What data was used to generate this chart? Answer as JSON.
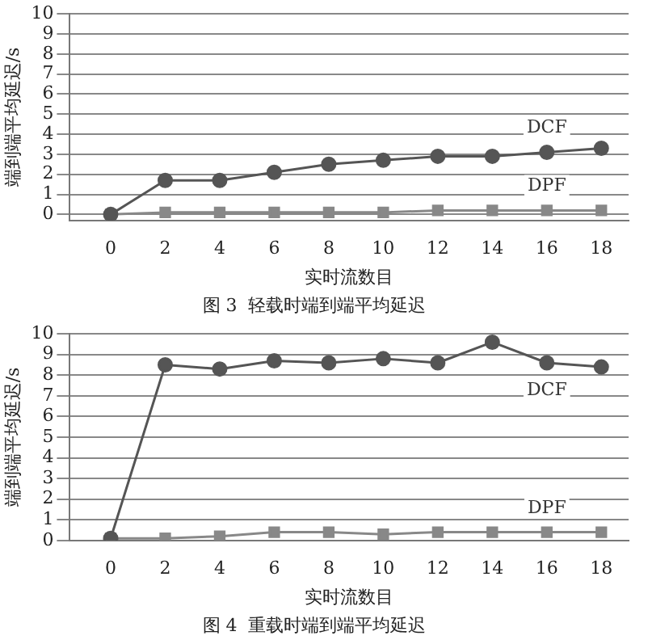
{
  "chart_data": [
    {
      "type": "line",
      "title": "图 3  轻载时端到端平均延迟",
      "xlabel": "实时流数目",
      "ylabel": "端到端平均延迟/s",
      "x": [
        0,
        2,
        4,
        6,
        8,
        10,
        12,
        14,
        16,
        18
      ],
      "xlim": [
        -1.5,
        19
      ],
      "xticks": [
        0,
        2,
        4,
        6,
        8,
        10,
        12,
        14,
        16,
        18
      ],
      "ylim": [
        -0.3,
        10
      ],
      "yticks": [
        0,
        1,
        2,
        3,
        4,
        5,
        6,
        7,
        8,
        9,
        10
      ],
      "grid": "y",
      "legend": false,
      "series": [
        {
          "name": "DCF",
          "color": "#555555",
          "marker": "circle",
          "values": [
            0,
            1.7,
            1.7,
            2.1,
            2.5,
            2.7,
            2.9,
            2.9,
            3.1,
            3.3
          ]
        },
        {
          "name": "DPF",
          "color": "#888888",
          "marker": "square",
          "values": [
            0,
            0.1,
            0.1,
            0.1,
            0.1,
            0.1,
            0.2,
            0.2,
            0.2,
            0.2
          ]
        }
      ]
    },
    {
      "type": "line",
      "title": "图 4  重载时端到端平均延迟",
      "xlabel": "实时流数目",
      "ylabel": "端到端平均延迟/s",
      "x": [
        0,
        2,
        4,
        6,
        8,
        10,
        12,
        14,
        16,
        18
      ],
      "xlim": [
        -1.5,
        19
      ],
      "xticks": [
        0,
        2,
        4,
        6,
        8,
        10,
        12,
        14,
        16,
        18
      ],
      "ylim": [
        0,
        10
      ],
      "yticks": [
        0,
        1,
        2,
        3,
        4,
        5,
        6,
        7,
        8,
        9,
        10
      ],
      "grid": "y",
      "legend": false,
      "series": [
        {
          "name": "DCF",
          "color": "#555555",
          "marker": "circle",
          "values": [
            0.1,
            8.5,
            8.3,
            8.7,
            8.6,
            8.8,
            8.6,
            9.6,
            8.6,
            8.4
          ]
        },
        {
          "name": "DPF",
          "color": "#888888",
          "marker": "square",
          "values": [
            0.1,
            0.1,
            0.2,
            0.4,
            0.4,
            0.3,
            0.4,
            0.4,
            0.4,
            0.4
          ]
        }
      ]
    }
  ]
}
